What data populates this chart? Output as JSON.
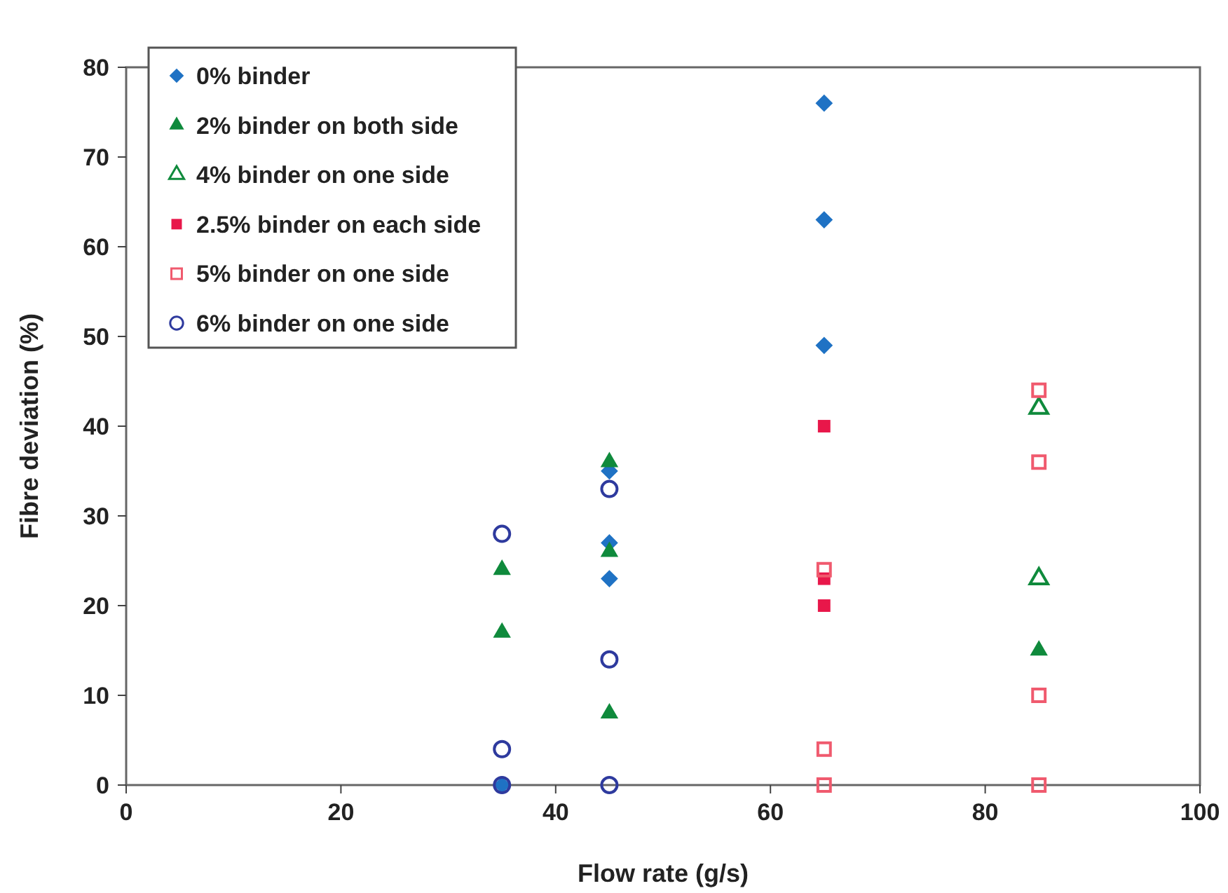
{
  "chart_data": {
    "type": "scatter",
    "xlabel": "Flow rate (g/s)",
    "ylabel": "Fibre deviation (%)",
    "xlim": [
      0,
      100
    ],
    "xticks": [
      0,
      20,
      40,
      60,
      80,
      100
    ],
    "ylim": [
      0,
      80
    ],
    "yticks": [
      0,
      10,
      20,
      30,
      40,
      50,
      60,
      70,
      80
    ],
    "grid": false,
    "legend": "top left",
    "series": [
      {
        "name": "0% binder",
        "color": "#1f72c4",
        "marker": "diamond",
        "x": [
          35,
          45,
          45,
          45,
          65,
          65,
          65
        ],
        "values": [
          0,
          35,
          27,
          23,
          76,
          63,
          49
        ]
      },
      {
        "name": "2% binder on both side",
        "color": "#0f8a3c",
        "marker": "triangle",
        "x": [
          35,
          35,
          45,
          45,
          45,
          85
        ],
        "values": [
          24,
          17,
          36,
          26,
          8,
          15
        ]
      },
      {
        "name": "4% binder on one side",
        "color": "#0f8a3c",
        "marker": "triangle",
        "x": [
          85,
          85
        ],
        "values": [
          42,
          23
        ]
      },
      {
        "name": "2.5% binder on each side",
        "color": "#e8174a",
        "marker": "square",
        "x": [
          65,
          65,
          65
        ],
        "values": [
          40,
          23,
          20
        ]
      },
      {
        "name": "5% binder on one side",
        "color": "#f05a6e",
        "marker": "square",
        "x": [
          65,
          65,
          65,
          85,
          85,
          85,
          85
        ],
        "values": [
          24,
          4,
          0,
          44,
          36,
          10,
          0
        ]
      },
      {
        "name": "6% binder on one side",
        "color": "#2e3a9e",
        "marker": "circle",
        "x": [
          35,
          35,
          35,
          45,
          45,
          45
        ],
        "values": [
          28,
          4,
          0,
          33,
          14,
          0
        ]
      }
    ]
  }
}
